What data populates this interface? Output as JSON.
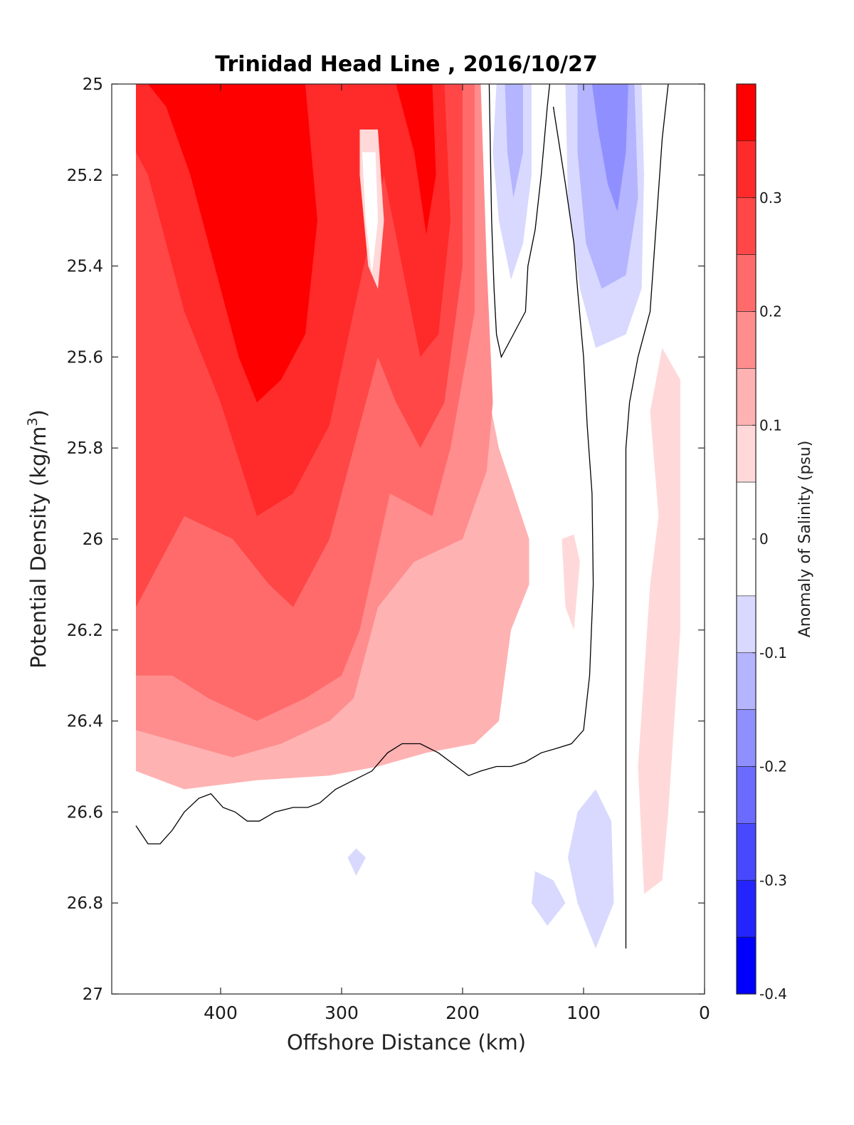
{
  "chart_data": {
    "type": "contour",
    "title": "Trinidad Head Line , 2016/10/27",
    "xlabel": "Offshore Distance (km)",
    "ylabel_main": "Potential Density (kg/m",
    "ylabel_sup": "3",
    "ylabel_close": ")",
    "x_reversed": true,
    "xlim": [
      490,
      0
    ],
    "ylim": [
      25,
      27
    ],
    "y_reversed": true,
    "xticks": [
      "400",
      "300",
      "200",
      "100",
      "0"
    ],
    "yticks": [
      "25",
      "25.2",
      "25.4",
      "25.6",
      "25.8",
      "26",
      "26.2",
      "26.4",
      "26.6",
      "26.8",
      "27"
    ],
    "colorbar": {
      "label": "Anomaly of Salinity (psu)",
      "range": [
        -0.4,
        0.4
      ],
      "ticks": [
        "0.3",
        "0.2",
        "0.1",
        "0",
        "-0.1",
        "-0.2",
        "-0.3",
        "-0.4"
      ],
      "levels": [
        {
          "min": 0.35,
          "max": 0.4,
          "color": "#ff0000"
        },
        {
          "min": 0.3,
          "max": 0.35,
          "color": "#ff2a2a"
        },
        {
          "min": 0.25,
          "max": 0.3,
          "color": "#ff4747"
        },
        {
          "min": 0.2,
          "max": 0.25,
          "color": "#ff6b6b"
        },
        {
          "min": 0.15,
          "max": 0.2,
          "color": "#ff8d8d"
        },
        {
          "min": 0.1,
          "max": 0.15,
          "color": "#ffb2b2"
        },
        {
          "min": 0.05,
          "max": 0.1,
          "color": "#ffd9d9"
        },
        {
          "min": -0.05,
          "max": 0.05,
          "color": "#ffffff"
        },
        {
          "min": -0.1,
          "max": -0.05,
          "color": "#d9d9ff"
        },
        {
          "min": -0.15,
          "max": -0.1,
          "color": "#b4b4ff"
        },
        {
          "min": -0.2,
          "max": -0.15,
          "color": "#8f8fff"
        },
        {
          "min": -0.25,
          "max": -0.2,
          "color": "#6b6bff"
        },
        {
          "min": -0.3,
          "max": -0.25,
          "color": "#4848ff"
        },
        {
          "min": -0.35,
          "max": -0.3,
          "color": "#2424ff"
        },
        {
          "min": -0.4,
          "max": -0.35,
          "color": "#0000ff"
        }
      ]
    },
    "anomaly_regions": [
      {
        "name": "offshore-core-0.1",
        "value": 0.1,
        "points": [
          [
            470,
            25
          ],
          [
            200,
            25
          ],
          [
            185,
            25.6
          ],
          [
            170,
            25.8
          ],
          [
            145,
            26
          ],
          [
            145,
            26.1
          ],
          [
            160,
            26.2
          ],
          [
            170,
            26.4
          ],
          [
            190,
            26.45
          ],
          [
            230,
            26.47
          ],
          [
            270,
            26.5
          ],
          [
            310,
            26.52
          ],
          [
            370,
            26.53
          ],
          [
            430,
            26.55
          ],
          [
            470,
            26.51
          ]
        ]
      },
      {
        "name": "offshore-core-0.15",
        "value": 0.15,
        "points": [
          [
            470,
            25
          ],
          [
            185,
            25
          ],
          [
            180,
            25.4
          ],
          [
            175,
            25.7
          ],
          [
            180,
            25.85
          ],
          [
            200,
            26
          ],
          [
            240,
            26.05
          ],
          [
            270,
            26.15
          ],
          [
            290,
            26.35
          ],
          [
            310,
            26.4
          ],
          [
            350,
            26.45
          ],
          [
            390,
            26.48
          ],
          [
            430,
            26.45
          ],
          [
            470,
            26.42
          ]
        ]
      },
      {
        "name": "offshore-core-0.2",
        "value": 0.2,
        "points": [
          [
            470,
            25
          ],
          [
            190,
            25
          ],
          [
            190,
            25.5
          ],
          [
            210,
            25.8
          ],
          [
            225,
            25.95
          ],
          [
            260,
            25.9
          ],
          [
            285,
            26.2
          ],
          [
            300,
            26.3
          ],
          [
            330,
            26.35
          ],
          [
            370,
            26.4
          ],
          [
            410,
            26.35
          ],
          [
            440,
            26.3
          ],
          [
            470,
            26.3
          ]
        ]
      },
      {
        "name": "offshore-core-0.25",
        "value": 0.25,
        "points": [
          [
            470,
            25
          ],
          [
            200,
            25
          ],
          [
            200,
            25.4
          ],
          [
            215,
            25.7
          ],
          [
            235,
            25.8
          ],
          [
            255,
            25.7
          ],
          [
            270,
            25.6
          ],
          [
            290,
            25.8
          ],
          [
            310,
            26.0
          ],
          [
            340,
            26.15
          ],
          [
            360,
            26.1
          ],
          [
            390,
            26.0
          ],
          [
            430,
            25.95
          ],
          [
            460,
            26.1
          ],
          [
            470,
            26.15
          ]
        ]
      },
      {
        "name": "offshore-core-0.3",
        "value": 0.3,
        "points": [
          [
            470,
            25
          ],
          [
            215,
            25
          ],
          [
            210,
            25.3
          ],
          [
            220,
            25.55
          ],
          [
            235,
            25.6
          ],
          [
            250,
            25.4
          ],
          [
            265,
            25.2
          ],
          [
            290,
            25.5
          ],
          [
            310,
            25.75
          ],
          [
            340,
            25.9
          ],
          [
            370,
            25.95
          ],
          [
            400,
            25.7
          ],
          [
            430,
            25.5
          ],
          [
            460,
            25.2
          ],
          [
            470,
            25.15
          ]
        ]
      },
      {
        "name": "offshore-core-0.35",
        "value": 0.35,
        "points": [
          [
            460,
            25
          ],
          [
            330,
            25
          ],
          [
            320,
            25.3
          ],
          [
            330,
            25.55
          ],
          [
            350,
            25.65
          ],
          [
            370,
            25.7
          ],
          [
            385,
            25.6
          ],
          [
            405,
            25.4
          ],
          [
            425,
            25.2
          ],
          [
            445,
            25.05
          ]
        ]
      },
      {
        "name": "inner-max-0.35",
        "value": 0.35,
        "points": [
          [
            430,
            25
          ],
          [
            340,
            25
          ],
          [
            345,
            25.25
          ],
          [
            360,
            25.45
          ],
          [
            380,
            25.55
          ],
          [
            400,
            25.35
          ],
          [
            420,
            25.15
          ]
        ]
      },
      {
        "name": "second-max-0.35",
        "value": 0.35,
        "points": [
          [
            255,
            25
          ],
          [
            225,
            25
          ],
          [
            222,
            25.2
          ],
          [
            230,
            25.33
          ],
          [
            240,
            25.15
          ],
          [
            250,
            25.05
          ]
        ]
      },
      {
        "name": "low-gap-0.05",
        "value": 0.05,
        "points": [
          [
            285,
            25.1
          ],
          [
            270,
            25.1
          ],
          [
            265,
            25.3
          ],
          [
            270,
            25.45
          ],
          [
            278,
            25.4
          ],
          [
            285,
            25.2
          ]
        ]
      },
      {
        "name": "gap-white",
        "value": 0.0,
        "points": [
          [
            283,
            25.15
          ],
          [
            272,
            25.15
          ],
          [
            270,
            25.3
          ],
          [
            275,
            25.42
          ],
          [
            280,
            25.3
          ]
        ]
      },
      {
        "name": "nearshore-0.05",
        "value": 0.05,
        "points": [
          [
            45,
            25.72
          ],
          [
            35,
            25.58
          ],
          [
            20,
            25.65
          ],
          [
            20,
            26.2
          ],
          [
            30,
            26.6
          ],
          [
            35,
            26.75
          ],
          [
            50,
            26.78
          ],
          [
            55,
            26.5
          ],
          [
            45,
            26.1
          ],
          [
            38,
            25.95
          ]
        ]
      },
      {
        "name": "small-0.05",
        "value": 0.05,
        "points": [
          [
            118,
            26.0
          ],
          [
            108,
            25.99
          ],
          [
            103,
            26.05
          ],
          [
            108,
            26.2
          ],
          [
            115,
            26.15
          ]
        ]
      },
      {
        "name": "neg-top-a",
        "value": -0.1,
        "points": [
          [
            172,
            25
          ],
          [
            143,
            25
          ],
          [
            143,
            25.2
          ],
          [
            150,
            25.35
          ],
          [
            160,
            25.43
          ],
          [
            170,
            25.3
          ],
          [
            175,
            25.15
          ]
        ]
      },
      {
        "name": "neg-top-a-core",
        "value": -0.15,
        "points": [
          [
            165,
            25
          ],
          [
            150,
            25
          ],
          [
            150,
            25.15
          ],
          [
            158,
            25.25
          ],
          [
            163,
            25.15
          ]
        ]
      },
      {
        "name": "neg-top-b",
        "value": -0.1,
        "points": [
          [
            115,
            25
          ],
          [
            52,
            25
          ],
          [
            50,
            25.2
          ],
          [
            52,
            25.45
          ],
          [
            65,
            25.55
          ],
          [
            90,
            25.58
          ],
          [
            103,
            25.45
          ],
          [
            113,
            25.25
          ]
        ]
      },
      {
        "name": "neg-top-b-mid",
        "value": -0.15,
        "points": [
          [
            105,
            25
          ],
          [
            58,
            25
          ],
          [
            55,
            25.25
          ],
          [
            65,
            25.42
          ],
          [
            85,
            25.45
          ],
          [
            98,
            25.35
          ],
          [
            105,
            25.15
          ]
        ]
      },
      {
        "name": "neg-top-b-core",
        "value": -0.2,
        "points": [
          [
            93,
            25
          ],
          [
            63,
            25
          ],
          [
            65,
            25.15
          ],
          [
            72,
            25.28
          ],
          [
            80,
            25.22
          ],
          [
            88,
            25.1
          ]
        ]
      },
      {
        "name": "neg-deep-a",
        "value": -0.1,
        "points": [
          [
            105,
            26.6
          ],
          [
            90,
            26.55
          ],
          [
            77,
            26.62
          ],
          [
            75,
            26.8
          ],
          [
            90,
            26.9
          ],
          [
            105,
            26.8
          ],
          [
            113,
            26.7
          ]
        ]
      },
      {
        "name": "neg-deep-b",
        "value": -0.1,
        "points": [
          [
            140,
            26.73
          ],
          [
            125,
            26.75
          ],
          [
            115,
            26.8
          ],
          [
            130,
            26.85
          ],
          [
            143,
            26.8
          ]
        ]
      },
      {
        "name": "neg-deep-c",
        "value": -0.1,
        "points": [
          [
            295,
            26.7
          ],
          [
            288,
            26.68
          ],
          [
            280,
            26.7
          ],
          [
            288,
            26.74
          ]
        ]
      }
    ],
    "zero_contours": [
      {
        "name": "zero-contour-bottom",
        "points": [
          [
            470,
            26.63
          ],
          [
            460,
            26.67
          ],
          [
            450,
            26.67
          ],
          [
            440,
            26.64
          ],
          [
            430,
            26.6
          ],
          [
            418,
            26.57
          ],
          [
            408,
            26.56
          ],
          [
            398,
            26.59
          ],
          [
            388,
            26.6
          ],
          [
            378,
            26.62
          ],
          [
            368,
            26.62
          ],
          [
            355,
            26.6
          ],
          [
            340,
            26.59
          ],
          [
            328,
            26.59
          ],
          [
            318,
            26.58
          ],
          [
            305,
            26.55
          ],
          [
            290,
            26.53
          ],
          [
            275,
            26.51
          ],
          [
            262,
            26.47
          ],
          [
            250,
            26.45
          ],
          [
            235,
            26.45
          ],
          [
            220,
            26.47
          ],
          [
            205,
            26.5
          ],
          [
            195,
            26.52
          ],
          [
            185,
            26.51
          ],
          [
            172,
            26.5
          ],
          [
            160,
            26.5
          ],
          [
            148,
            26.49
          ],
          [
            135,
            26.47
          ],
          [
            122,
            26.46
          ],
          [
            110,
            26.45
          ],
          [
            100,
            26.42
          ],
          [
            95,
            26.3
          ],
          [
            92,
            26.1
          ],
          [
            93,
            25.9
          ],
          [
            97,
            25.75
          ],
          [
            100,
            25.6
          ],
          [
            105,
            25.45
          ],
          [
            108,
            25.35
          ],
          [
            115,
            25.22
          ],
          [
            125,
            25.05
          ]
        ]
      },
      {
        "name": "zero-contour-upper",
        "points": [
          [
            178,
            25
          ],
          [
            176,
            25.3
          ],
          [
            174,
            25.45
          ],
          [
            172,
            25.55
          ],
          [
            168,
            25.6
          ],
          [
            158,
            25.55
          ],
          [
            148,
            25.5
          ],
          [
            146,
            25.4
          ],
          [
            140,
            25.32
          ],
          [
            135,
            25.2
          ],
          [
            130,
            25.05
          ],
          [
            128,
            25
          ]
        ]
      },
      {
        "name": "zero-contour-right",
        "points": [
          [
            30,
            25
          ],
          [
            35,
            25.12
          ],
          [
            45,
            25.5
          ],
          [
            55,
            25.6
          ],
          [
            62,
            25.7
          ],
          [
            65,
            25.8
          ],
          [
            65,
            26.0
          ],
          [
            65,
            26.4
          ],
          [
            65,
            26.9
          ]
        ]
      }
    ]
  }
}
